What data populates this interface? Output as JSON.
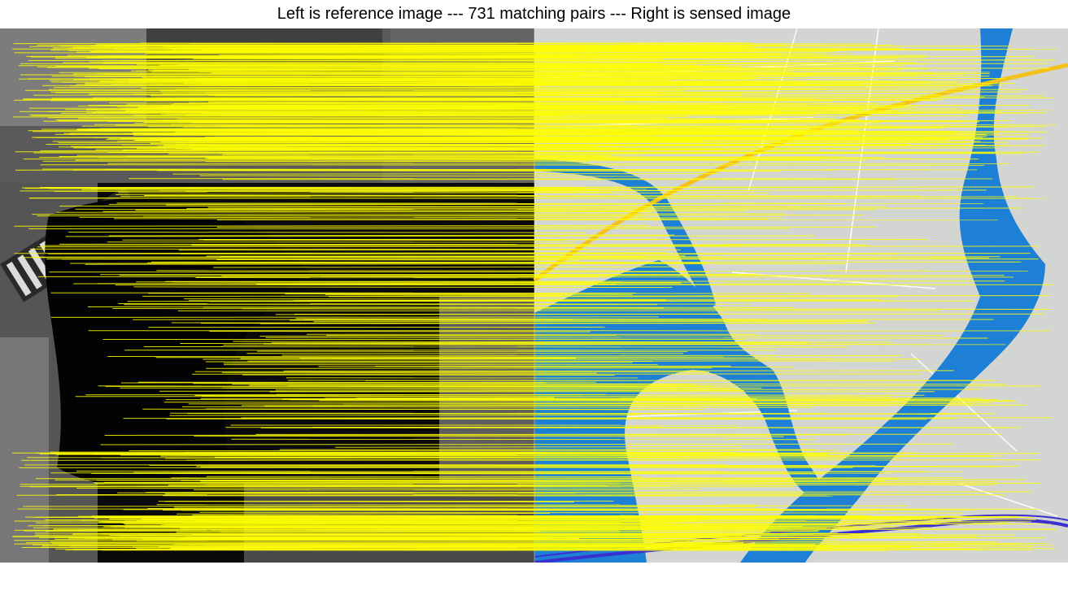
{
  "title": "Left is reference image --- 731 matching pairs --- Right is sensed image",
  "figure": {
    "left_panel": "reference-image",
    "right_panel": "sensed-image",
    "match_line_color": "#ffff00",
    "match_count": 731,
    "colors": {
      "reference_background": "#0a0a0a",
      "reference_field": "#4a4a4a",
      "map_background": "#d3d5d2",
      "water": "#1e7fd6",
      "road_major": "#f2c21a",
      "railway": "#3a2fd0",
      "road_minor": "#ffffff"
    }
  }
}
